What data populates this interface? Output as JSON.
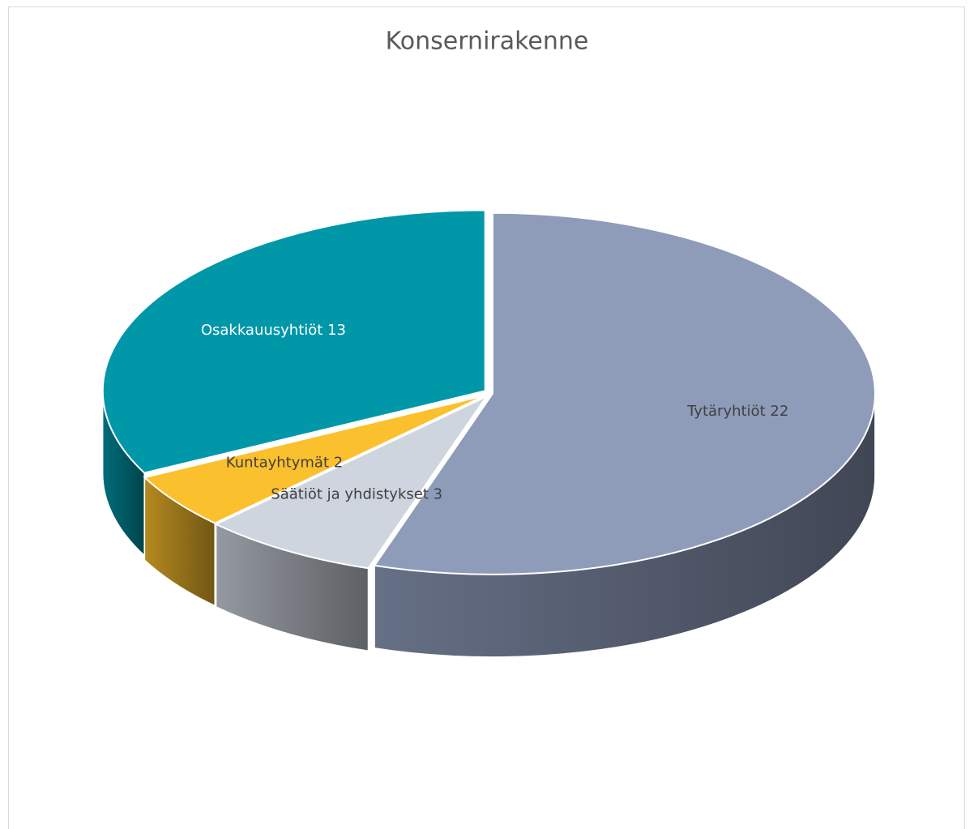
{
  "chart_data": {
    "type": "pie3d",
    "title": "Konsernirakenne",
    "categories": [
      "Tytäryhtiöt",
      "Säätiöt ja yhdistykset",
      "Kuntayhtymät",
      "Osakkauusyhtiöt"
    ],
    "values": [
      22,
      3,
      2,
      13
    ],
    "colors": [
      "#8e9cba",
      "#cfd5df",
      "#fbc02d",
      "#0097a9"
    ]
  }
}
